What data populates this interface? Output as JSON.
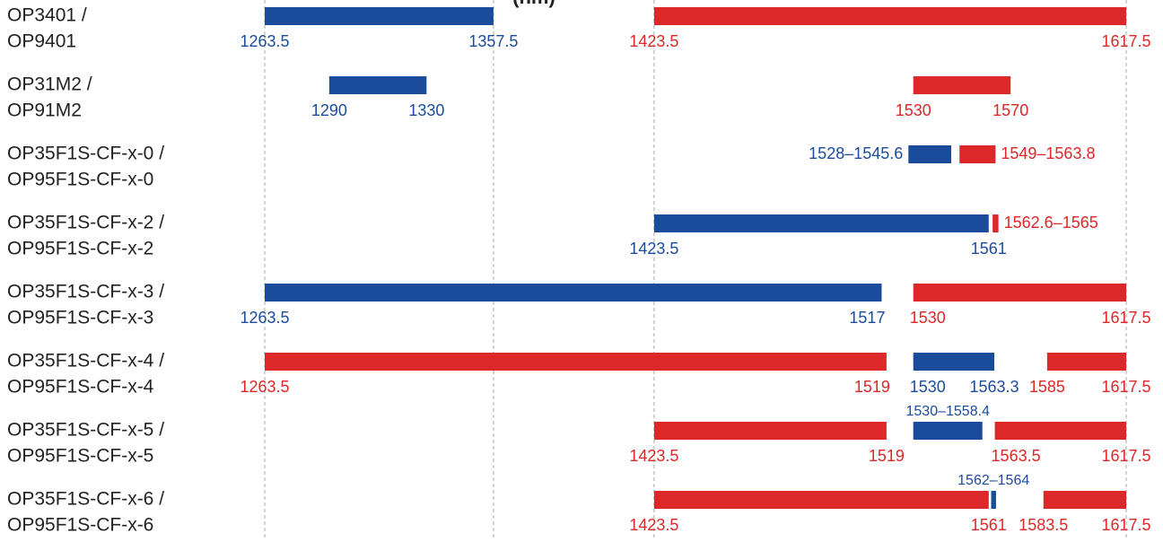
{
  "chart_data": {
    "type": "range",
    "unit_label": "(nm)",
    "xlim": [
      1263.5,
      1617.5
    ],
    "gridlines": [
      1263.5,
      1357.5,
      1423.5,
      1617.5
    ],
    "rows": [
      {
        "label": [
          "OP3401 /",
          "OP9401"
        ],
        "ranges": [
          {
            "color": "#1b4c9c",
            "values": [
              1263.5,
              1357.5
            ]
          },
          {
            "color": "#dc2828",
            "values": [
              1423.5,
              1617.5
            ]
          }
        ]
      },
      {
        "label": [
          "OP31M2 /",
          "OP91M2"
        ],
        "ranges": [
          {
            "color": "#1b4c9c",
            "values": [
              1290,
              1330
            ]
          },
          {
            "color": "#dc2828",
            "values": [
              1530,
              1570
            ]
          }
        ]
      },
      {
        "label": [
          "OP35F1S-CF-x-0 /",
          "OP95F1S-CF-x-0"
        ],
        "ranges": [
          {
            "color": "#1b4c9c",
            "values": [
              1528,
              1545.6
            ],
            "label": "1528–1545.6"
          },
          {
            "color": "#dc2828",
            "values": [
              1549,
              1563.8
            ],
            "label": "1549–1563.8"
          }
        ]
      },
      {
        "label": [
          "OP35F1S-CF-x-2 /",
          "OP95F1S-CF-x-2"
        ],
        "ranges": [
          {
            "color": "#1b4c9c",
            "values": [
              1423.5,
              1561
            ]
          },
          {
            "color": "#dc2828",
            "values": [
              1562.6,
              1565
            ],
            "label": "1562.6–1565"
          }
        ]
      },
      {
        "label": [
          "OP35F1S-CF-x-3 /",
          "OP95F1S-CF-x-3"
        ],
        "ranges": [
          {
            "color": "#1b4c9c",
            "values": [
              1263.5,
              1517
            ]
          },
          {
            "color": "#dc2828",
            "values": [
              1530,
              1617.5
            ]
          }
        ]
      },
      {
        "label": [
          "OP35F1S-CF-x-4 /",
          "OP95F1S-CF-x-4"
        ],
        "ranges": [
          {
            "color": "#dc2828",
            "values": [
              1263.5,
              1519
            ]
          },
          {
            "color": "#1b4c9c",
            "values": [
              1530,
              1563.3
            ]
          },
          {
            "color": "#dc2828",
            "values": [
              1585,
              1617.5
            ]
          }
        ]
      },
      {
        "label": [
          "OP35F1S-CF-x-5 /",
          "OP95F1S-CF-x-5"
        ],
        "ranges": [
          {
            "color": "#dc2828",
            "values": [
              1423.5,
              1519
            ]
          },
          {
            "color": "#1b4c9c",
            "values": [
              1530,
              1558.4
            ],
            "label": "1530–1558.4"
          },
          {
            "color": "#dc2828",
            "values": [
              1563.5,
              1617.5
            ]
          }
        ]
      },
      {
        "label": [
          "OP35F1S-CF-x-6 /",
          "OP95F1S-CF-x-6"
        ],
        "ranges": [
          {
            "color": "#dc2828",
            "values": [
              1423.5,
              1561
            ]
          },
          {
            "color": "#1b4c9c",
            "values": [
              1562,
              1564
            ],
            "label": "1562–1564"
          },
          {
            "color": "#dc2828",
            "values": [
              1583.5,
              1617.5
            ]
          }
        ]
      }
    ]
  }
}
